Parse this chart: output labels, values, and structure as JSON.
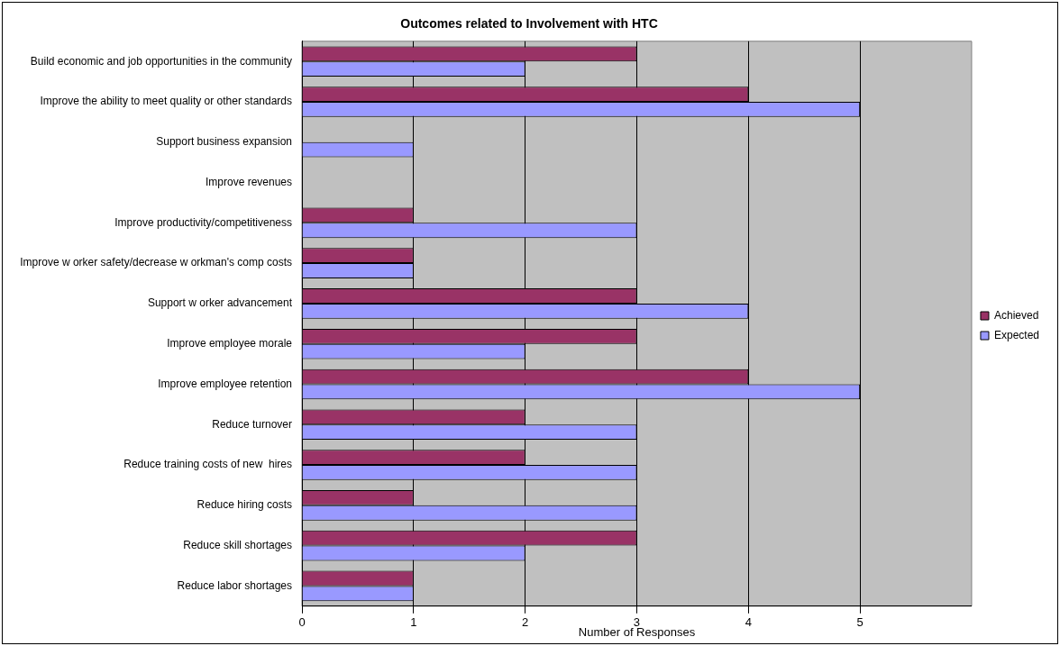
{
  "chart_data": {
    "type": "bar",
    "orientation": "horizontal",
    "title": "Outcomes related to Involvement with HTC",
    "xlabel": "Number of Responses",
    "categories": [
      "Build economic and job opportunities in the community",
      "Improve the ability to meet quality or other standards",
      "Support business expansion",
      "Improve revenues",
      "Improve productivity/competitiveness",
      "Improve w orker safety/decrease w orkman's comp costs",
      "Support w orker advancement",
      "Improve employee morale",
      "Improve employee retention",
      "Reduce turnover",
      "Reduce training costs of new  hires",
      "Reduce hiring costs",
      "Reduce skill shortages",
      "Reduce labor shortages"
    ],
    "series": [
      {
        "name": "Achieved",
        "color": "#993366",
        "values": [
          3,
          4,
          0,
          0,
          1,
          1,
          3,
          3,
          4,
          2,
          2,
          1,
          3,
          1
        ]
      },
      {
        "name": "Expected",
        "color": "#9999ff",
        "values": [
          2,
          5,
          1,
          0,
          3,
          1,
          4,
          2,
          5,
          3,
          3,
          3,
          2,
          1
        ]
      }
    ],
    "xlim": [
      0,
      6
    ],
    "xticks": [
      0,
      1,
      2,
      3,
      4,
      5
    ],
    "grid": "x",
    "legend": "right"
  }
}
